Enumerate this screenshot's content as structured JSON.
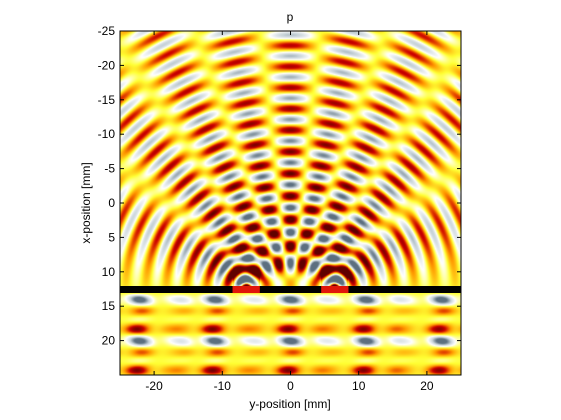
{
  "chart_data": {
    "type": "heatmap",
    "title": "p",
    "xlabel": "y-position [mm]",
    "ylabel": "x-position [mm]",
    "xlim": [
      -25,
      25
    ],
    "ylim": [
      -25,
      25
    ],
    "y_axis_reversed": true,
    "x_ticks": [
      -20,
      -10,
      0,
      10,
      20
    ],
    "y_ticks": [
      -25,
      -20,
      -15,
      -10,
      -5,
      0,
      5,
      10,
      15,
      20
    ],
    "colormap": "bone-white-hot",
    "colormap_colors": [
      "#5c6f7f",
      "#c6d2d8",
      "#ffffff",
      "#ffff33",
      "#ff9900",
      "#cc0000",
      "#600000"
    ],
    "barrier": {
      "x_position_mm": 12.5,
      "color": "#000000"
    },
    "slits": [
      {
        "y_range_mm": [
          -8.5,
          -4.5
        ]
      },
      {
        "y_range_mm": [
          4.5,
          8.5
        ]
      }
    ],
    "field": {
      "description": "pressure field of a plane wave through a double slit",
      "wavelength_mm": 3.0,
      "incident_side": "x > 12.5",
      "diffracted_side": "x < 12.5"
    }
  }
}
